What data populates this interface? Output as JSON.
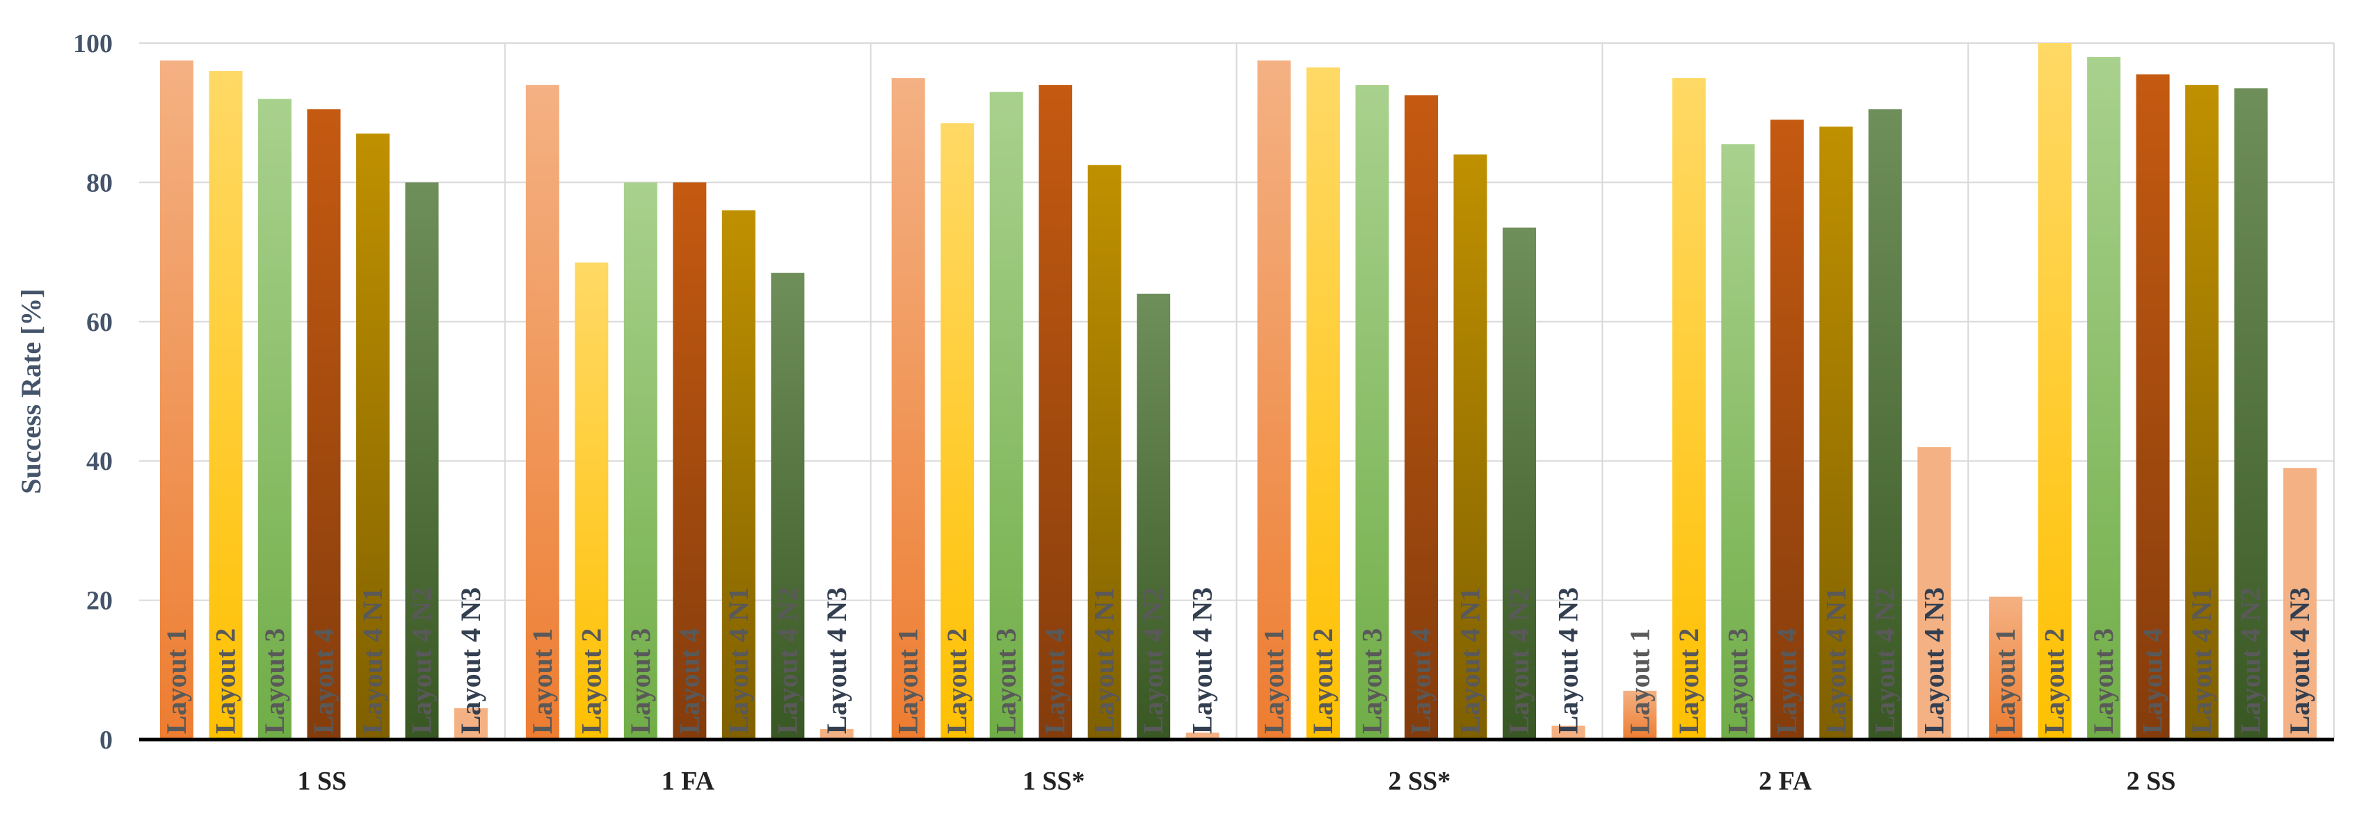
{
  "chart_data": {
    "type": "bar",
    "title": "",
    "xlabel": "",
    "ylabel": "Success Rate [%]",
    "ylim": [
      0,
      100
    ],
    "yticks": [
      0,
      20,
      40,
      60,
      80,
      100
    ],
    "grid": true,
    "legend": "none (series names printed vertically inside bars)",
    "categories": [
      "1 SS",
      "1 FA",
      "1 SS*",
      "2 SS*",
      "2 FA",
      "2 SS"
    ],
    "series": [
      {
        "name": "Layout 1",
        "color_top": "#f4b183",
        "color_bottom": "#ed7d31",
        "label_color": "#595959",
        "values": [
          97.5,
          94,
          95,
          97.5,
          7,
          20.5
        ]
      },
      {
        "name": "Layout 2",
        "color_top": "#ffd966",
        "color_bottom": "#ffc000",
        "label_color": "#595959",
        "values": [
          96,
          68.5,
          88.5,
          96.5,
          95,
          100
        ]
      },
      {
        "name": "Layout 3",
        "color_top": "#a9d18e",
        "color_bottom": "#70ad47",
        "label_color": "#595959",
        "values": [
          92,
          80,
          93,
          94,
          85.5,
          98
        ]
      },
      {
        "name": "Layout 4",
        "color_top": "#c55a11",
        "color_bottom": "#843c0c",
        "label_color": "#595959",
        "values": [
          90.5,
          80,
          94,
          92.5,
          89,
          95.5
        ]
      },
      {
        "name": "Layout 4 N1",
        "color_top": "#bf9000",
        "color_bottom": "#7f6000",
        "label_color": "#595959",
        "values": [
          87,
          76,
          82.5,
          84,
          88,
          94
        ]
      },
      {
        "name": "Layout 4 N2",
        "color_top": "#6f8f5a",
        "color_bottom": "#385723",
        "label_color": "#595959",
        "values": [
          80,
          67,
          64,
          73.5,
          90.5,
          93.5
        ]
      },
      {
        "name": "Layout 4 N3",
        "color_top": "#f4b183",
        "color_bottom": "#f4b183",
        "label_color": "#333f50",
        "values": [
          4.5,
          1.5,
          1,
          2,
          42,
          39
        ]
      }
    ]
  }
}
